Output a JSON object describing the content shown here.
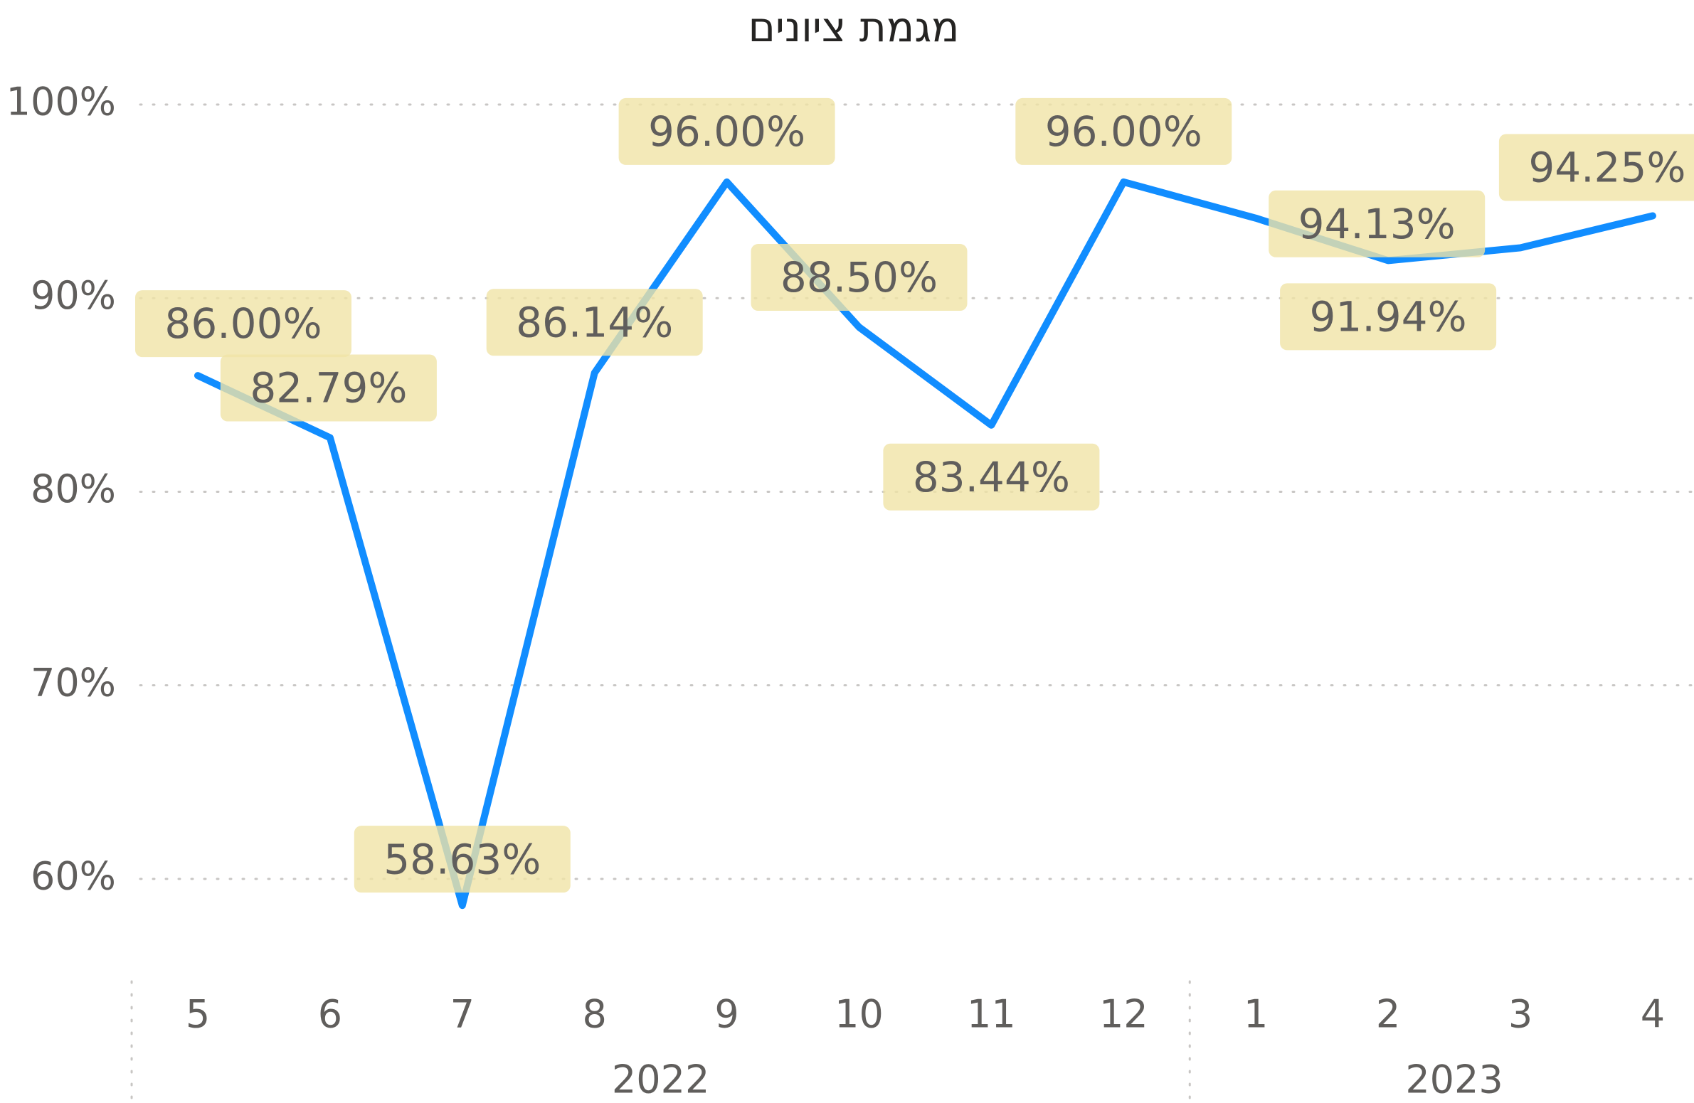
{
  "chart_data": {
    "type": "line",
    "title": "מגמת ציונים",
    "categories": [
      "5",
      "6",
      "7",
      "8",
      "9",
      "10",
      "11",
      "12",
      "1",
      "2",
      "3",
      "4"
    ],
    "x_groups": [
      {
        "label": "2022",
        "count": 8
      },
      {
        "label": "2023",
        "count": 4
      }
    ],
    "values": [
      86.0,
      82.79,
      58.63,
      86.14,
      96.0,
      88.5,
      83.44,
      96.0,
      94.13,
      91.94,
      92.6,
      94.25
    ],
    "value_labels": [
      "86.00%",
      "82.79%",
      "58.63%",
      "86.14%",
      "96.00%",
      "88.50%",
      "83.44%",
      "96.00%",
      "94.13%",
      "91.94%",
      null,
      "94.25%"
    ],
    "color": "#118DFF",
    "ylim": [
      55,
      100
    ],
    "yticks": [
      {
        "value": 60,
        "label": "60%"
      },
      {
        "value": 70,
        "label": "70%"
      },
      {
        "value": 80,
        "label": "80%"
      },
      {
        "value": 90,
        "label": "90%"
      },
      {
        "value": 100,
        "label": "100%"
      }
    ],
    "grid": true
  }
}
